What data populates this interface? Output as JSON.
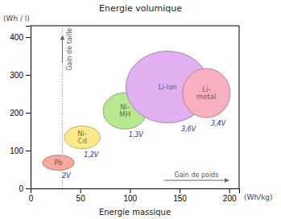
{
  "chart_data": {
    "type": "ellipse",
    "title": "Energie volumique",
    "xlabel": "Energie massique",
    "xlabel_unit": "(Wh/kg)",
    "ylabel": "(Wh / l)",
    "xlim": [
      0,
      210
    ],
    "ylim": [
      0,
      430
    ],
    "xticks": [
      0,
      50,
      100,
      150,
      200
    ],
    "yticks": [
      0,
      100,
      200,
      300,
      400
    ],
    "grid": false,
    "annotations": [
      {
        "type": "vline",
        "x": 32
      },
      {
        "type": "arrow",
        "direction": "up",
        "text": "Gain de taille"
      },
      {
        "type": "arrow",
        "direction": "right",
        "text": "Gain de poids"
      }
    ],
    "series": [
      {
        "name": "Pb",
        "x": 28,
        "y": 68,
        "x_radius": 16,
        "y_radius": 20,
        "voltage": "2V",
        "color": "#f9a8a0"
      },
      {
        "name": "Ni-\nCd",
        "x": 52,
        "y": 135,
        "x_radius": 18,
        "y_radius": 30,
        "voltage": "1,2V",
        "color": "#fde98c"
      },
      {
        "name": "Ni-\nMH",
        "x": 95,
        "y": 205,
        "x_radius": 22,
        "y_radius": 48,
        "voltage": "1,3V",
        "color": "#b8e890"
      },
      {
        "name": "Li-ion",
        "x": 138,
        "y": 268,
        "x_radius": 42,
        "y_radius": 95,
        "voltage": "3,6V",
        "color": "#e0b0f0"
      },
      {
        "name": "Li-\nmetal",
        "x": 177,
        "y": 252,
        "x_radius": 24,
        "y_radius": 65,
        "voltage": "3,4V",
        "color": "#f8b0c0"
      }
    ]
  }
}
